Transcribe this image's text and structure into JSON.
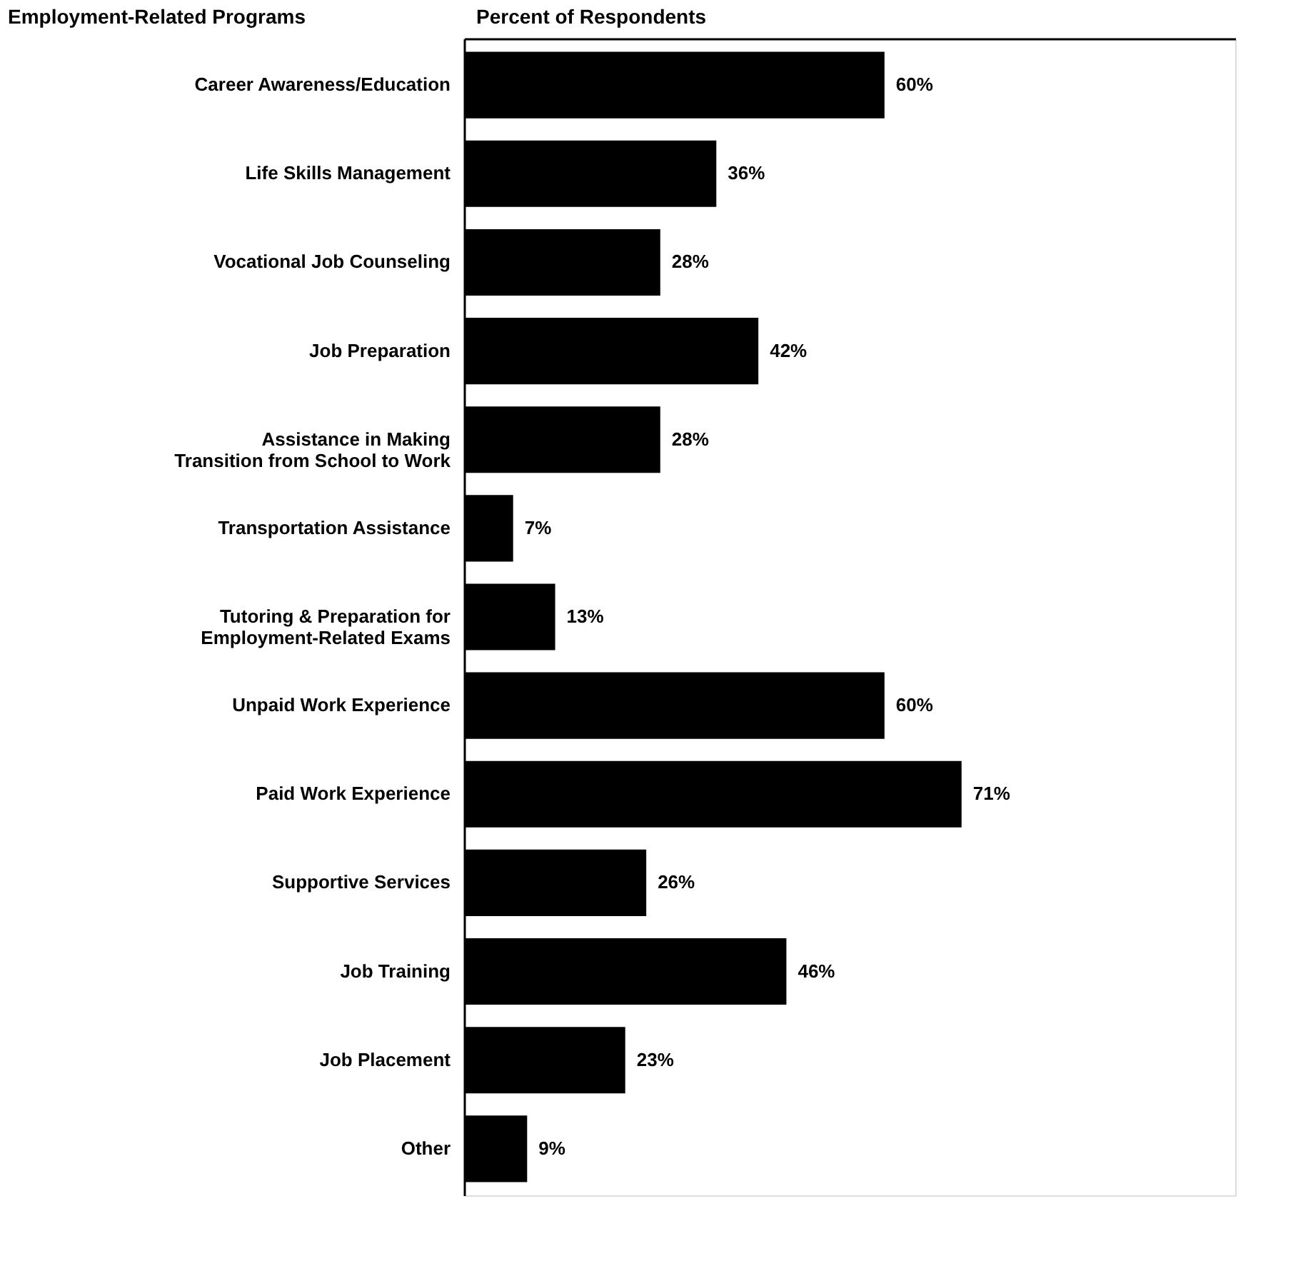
{
  "chart_data": {
    "type": "bar",
    "orientation": "horizontal",
    "xlabel": "Percent of Respondents",
    "ylabel": "Employment-Related Programs",
    "categories": [
      "Career Awareness/Education",
      "Life Skills Management",
      "Vocational Job Counseling",
      "Job Preparation",
      "Assistance in Making\nTransition from School to Work",
      "Transportation Assistance",
      "Tutoring & Preparation for\nEmployment-Related Exams",
      "Unpaid Work Experience",
      "Paid Work Experience",
      "Supportive Services",
      "Job Training",
      "Job Placement",
      "Other"
    ],
    "values": [
      60,
      36,
      28,
      42,
      28,
      7,
      13,
      60,
      71,
      26,
      46,
      23,
      9
    ],
    "value_labels": [
      "60%",
      "36%",
      "28%",
      "42%",
      "28%",
      "7%",
      "13%",
      "60%",
      "71%",
      "26%",
      "46%",
      "23%",
      "9%"
    ],
    "color": "#000000",
    "grid": false
  }
}
